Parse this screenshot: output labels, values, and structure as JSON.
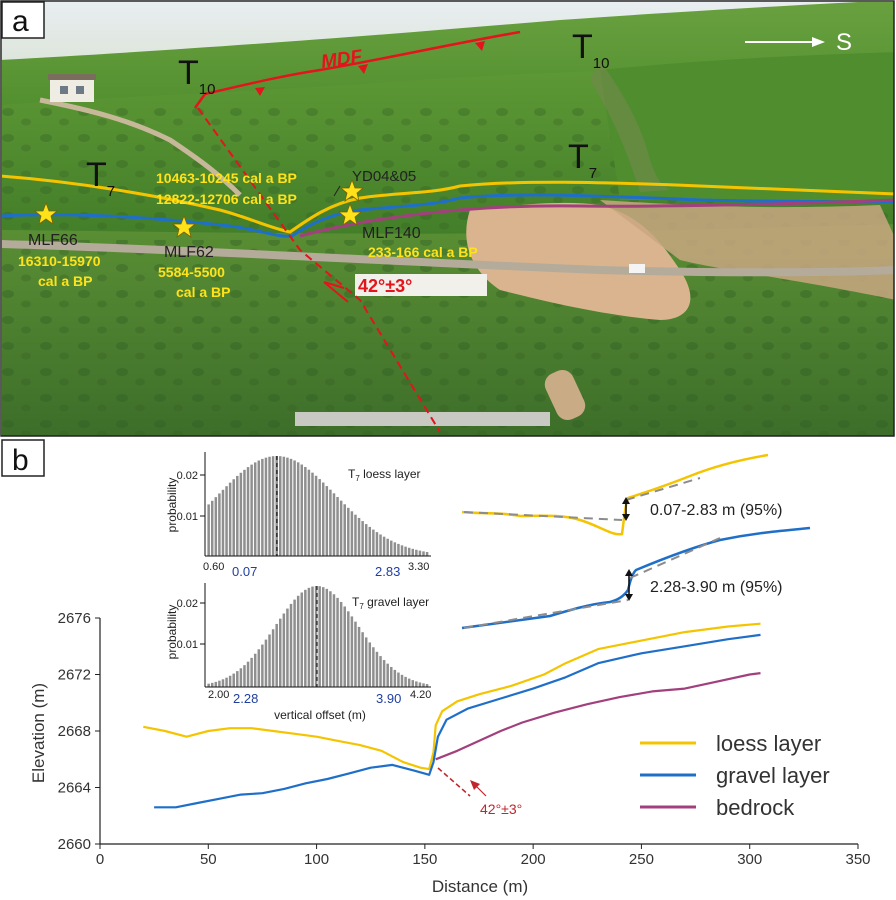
{
  "panel_a": {
    "label": "a",
    "fault_label": "MDF",
    "direction_label": "S",
    "terrace_T10_left": {
      "main": "T",
      "sub": "10"
    },
    "terrace_T10_right": {
      "main": "T",
      "sub": "10"
    },
    "terrace_T7_left": {
      "main": "T",
      "sub": "7"
    },
    "terrace_T7_right": {
      "main": "T",
      "sub": "7"
    },
    "samples": [
      {
        "id": "MLF66",
        "age_line1": "16310-15970",
        "age_line2": "cal a BP"
      },
      {
        "id": "MLF62",
        "age_line1": "5584-5500",
        "age_line2": "cal a BP"
      },
      {
        "id": "YD04&05",
        "age_line1": "10463-10245 cal a BP",
        "age_line2": "12822-12706 cal a BP"
      },
      {
        "id": "MLF140",
        "age_line1": "233-166 cal a BP"
      }
    ],
    "dip_label": "42°±3°",
    "colors": {
      "loess": "#f5c400",
      "gravel": "#1f6fc9",
      "bedrock": "#a2407d",
      "fault": "#e3141b",
      "label_yellow": "#ffe21a",
      "sky": "#e6edf1",
      "grass": "#4e8a2c"
    }
  },
  "panel_b": {
    "label": "b",
    "hist1": {
      "title_main": "T",
      "title_sub": "7",
      "title_rest": " loess layer",
      "ylabel": "probability",
      "yticks": [
        "0.02",
        "0.01"
      ],
      "xticks_black": [
        "0.60",
        "3.30"
      ],
      "xticks_blue": [
        "0.07",
        "2.83"
      ],
      "xlim": [
        0.6,
        3.3
      ],
      "mean": 1.45,
      "sd": 0.72
    },
    "hist2": {
      "title_main": "T",
      "title_sub": "7",
      "title_rest": " gravel layer",
      "ylabel": "probability",
      "xlabel": "vertical offset (m)",
      "yticks": [
        "0.02",
        "0.01"
      ],
      "xticks_black": [
        "2.00",
        "4.20"
      ],
      "xticks_blue": [
        "2.28",
        "3.90"
      ],
      "xlim": [
        2.0,
        4.2
      ],
      "mean": 3.09,
      "sd": 0.41
    },
    "offset_loess": "0.07-2.83 m (95%)",
    "offset_gravel": "2.28-3.90 m (95%)",
    "dip_label": "42°±3°",
    "legend": [
      "loess layer",
      "gravel layer",
      "bedrock"
    ]
  },
  "chart_data": {
    "type": "line",
    "xlabel": "Distance (m)",
    "ylabel": "Elevation (m)",
    "xlim": [
      0,
      350
    ],
    "ylim": [
      2660,
      2676
    ],
    "xticks": [
      0,
      50,
      100,
      150,
      200,
      250,
      300,
      350
    ],
    "yticks": [
      2660,
      2664,
      2668,
      2672,
      2676
    ],
    "series": [
      {
        "name": "loess layer",
        "color": "#f5c400",
        "points": [
          [
            20,
            2668.3
          ],
          [
            30,
            2668.0
          ],
          [
            40,
            2667.6
          ],
          [
            50,
            2668.0
          ],
          [
            60,
            2668.2
          ],
          [
            70,
            2668.2
          ],
          [
            80,
            2668.0
          ],
          [
            90,
            2667.8
          ],
          [
            100,
            2667.6
          ],
          [
            110,
            2667.3
          ],
          [
            120,
            2667.0
          ],
          [
            130,
            2666.6
          ],
          [
            140,
            2665.8
          ],
          [
            148,
            2665.4
          ],
          [
            152,
            2665.3
          ],
          [
            154,
            2666.5
          ],
          [
            155,
            2668.4
          ],
          [
            158,
            2669.4
          ],
          [
            165,
            2670.1
          ],
          [
            175,
            2670.6
          ],
          [
            190,
            2671.2
          ],
          [
            205,
            2672.0
          ],
          [
            215,
            2672.8
          ],
          [
            230,
            2673.8
          ],
          [
            250,
            2674.4
          ],
          [
            270,
            2675.0
          ],
          [
            290,
            2675.4
          ],
          [
            305,
            2675.6
          ]
        ]
      },
      {
        "name": "gravel layer",
        "color": "#1f6fc9",
        "points": [
          [
            25,
            2662.6
          ],
          [
            35,
            2662.6
          ],
          [
            45,
            2662.9
          ],
          [
            55,
            2663.2
          ],
          [
            65,
            2663.5
          ],
          [
            75,
            2663.6
          ],
          [
            85,
            2663.9
          ],
          [
            95,
            2664.3
          ],
          [
            105,
            2664.6
          ],
          [
            115,
            2665.0
          ],
          [
            125,
            2665.4
          ],
          [
            135,
            2665.6
          ],
          [
            145,
            2665.2
          ],
          [
            152,
            2664.9
          ],
          [
            154,
            2665.8
          ],
          [
            156,
            2667.6
          ],
          [
            160,
            2668.8
          ],
          [
            170,
            2669.6
          ],
          [
            185,
            2670.3
          ],
          [
            200,
            2671.0
          ],
          [
            215,
            2671.8
          ],
          [
            230,
            2672.8
          ],
          [
            250,
            2673.5
          ],
          [
            270,
            2674.0
          ],
          [
            290,
            2674.5
          ],
          [
            305,
            2674.8
          ]
        ]
      },
      {
        "name": "bedrock",
        "color": "#a2407d",
        "points": [
          [
            155,
            2666.0
          ],
          [
            165,
            2666.6
          ],
          [
            175,
            2667.3
          ],
          [
            185,
            2668.0
          ],
          [
            195,
            2668.6
          ],
          [
            210,
            2669.3
          ],
          [
            225,
            2669.9
          ],
          [
            240,
            2670.4
          ],
          [
            255,
            2670.8
          ],
          [
            270,
            2671.0
          ],
          [
            285,
            2671.5
          ],
          [
            300,
            2672.0
          ],
          [
            305,
            2672.1
          ]
        ]
      }
    ]
  }
}
